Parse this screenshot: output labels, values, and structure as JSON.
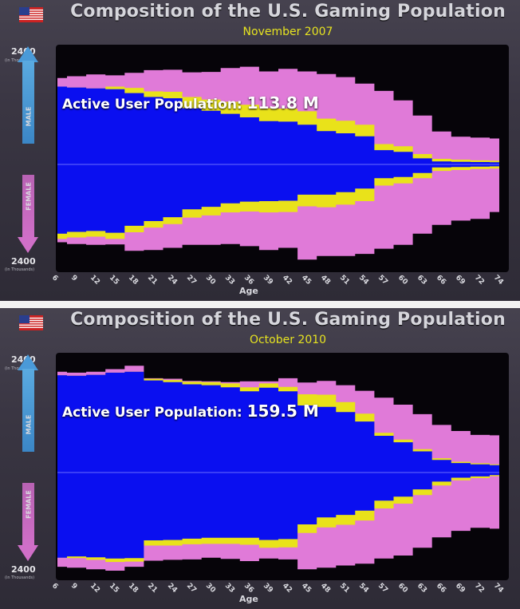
{
  "colors": {
    "background": "#060409",
    "active_male": "#0a0ff0",
    "active_female": "#0a0ff0",
    "inactive": "#e07ad8",
    "band": "#e9e21a",
    "subtitle": "#e6e320"
  },
  "chart_data": [
    {
      "type": "area",
      "title": "Composition of the U.S. Gaming Population",
      "subtitle": "November 2007",
      "xlabel": "Age",
      "y_top_label": "2400",
      "y_bottom_label": "2400",
      "y_unit": "(in Thousands)",
      "male_label": "MALE",
      "female_label": "FEMALE",
      "annotation_label": "Active User Population:",
      "annotation_value": "113.8 M",
      "xlim": [
        6,
        74
      ],
      "ylim": [
        -2400,
        2400
      ],
      "x_ticks": [
        "6",
        "9",
        "12",
        "15",
        "18",
        "21",
        "24",
        "27",
        "30",
        "33",
        "36",
        "39",
        "42",
        "45",
        "48",
        "51",
        "54",
        "57",
        "60",
        "63",
        "66",
        "69",
        "72",
        "74"
      ],
      "x": [
        6,
        9,
        12,
        15,
        18,
        21,
        24,
        27,
        30,
        33,
        36,
        39,
        42,
        45,
        48,
        51,
        54,
        57,
        60,
        63,
        66,
        69,
        72,
        74
      ],
      "male_total": [
        2000,
        2040,
        2080,
        2060,
        2120,
        2180,
        2190,
        2130,
        2140,
        2230,
        2260,
        2150,
        2210,
        2150,
        2090,
        2020,
        1870,
        1700,
        1480,
        1130,
        760,
        640,
        620,
        600
      ],
      "male_active": [
        1800,
        1780,
        1760,
        1740,
        1650,
        1560,
        1530,
        1300,
        1240,
        1170,
        1090,
        1000,
        990,
        920,
        770,
        720,
        650,
        330,
        290,
        140,
        70,
        60,
        55,
        50
      ],
      "male_band": [
        0,
        0,
        0,
        60,
        120,
        130,
        150,
        260,
        260,
        280,
        290,
        300,
        300,
        310,
        290,
        290,
        270,
        140,
        130,
        100,
        60,
        50,
        40,
        35
      ],
      "female_total": [
        1800,
        1840,
        1860,
        1850,
        2000,
        1980,
        1930,
        1860,
        1860,
        1840,
        1890,
        1980,
        1930,
        2200,
        2120,
        2120,
        2070,
        1950,
        1860,
        1600,
        1400,
        1300,
        1260,
        1100
      ],
      "female_active": [
        1600,
        1560,
        1540,
        1580,
        1420,
        1310,
        1220,
        1040,
        980,
        900,
        860,
        850,
        840,
        700,
        700,
        640,
        560,
        320,
        290,
        200,
        70,
        60,
        50,
        45
      ],
      "female_band": [
        120,
        130,
        130,
        140,
        150,
        150,
        160,
        190,
        200,
        210,
        230,
        260,
        260,
        270,
        290,
        290,
        290,
        170,
        150,
        120,
        80,
        70,
        55,
        50
      ]
    },
    {
      "type": "area",
      "title": "Composition of the U.S. Gaming Population",
      "subtitle": "October 2010",
      "xlabel": "Age",
      "y_top_label": "2400",
      "y_bottom_label": "2400",
      "y_unit": "(in Thousands)",
      "male_label": "MALE",
      "female_label": "FEMALE",
      "annotation_label": "Active User Population:",
      "annotation_value": "159.5 M",
      "xlim": [
        6,
        74
      ],
      "ylim": [
        -2400,
        2400
      ],
      "x_ticks": [
        "6",
        "9",
        "12",
        "15",
        "18",
        "21",
        "24",
        "27",
        "30",
        "33",
        "36",
        "39",
        "42",
        "45",
        "48",
        "51",
        "54",
        "57",
        "60",
        "63",
        "66",
        "69",
        "72",
        "74"
      ],
      "x": [
        6,
        9,
        12,
        15,
        18,
        21,
        24,
        27,
        30,
        33,
        36,
        39,
        42,
        45,
        48,
        51,
        54,
        57,
        60,
        63,
        66,
        69,
        72,
        74
      ],
      "male_total": [
        2330,
        2310,
        2330,
        2390,
        2470,
        2180,
        2170,
        2120,
        2110,
        2090,
        2110,
        2110,
        2180,
        2080,
        2120,
        2020,
        1890,
        1730,
        1570,
        1350,
        1100,
        960,
        870,
        860
      ],
      "male_active": [
        2250,
        2240,
        2260,
        2310,
        2330,
        2130,
        2090,
        2040,
        2020,
        1970,
        1880,
        1960,
        1880,
        1550,
        1520,
        1400,
        1180,
        850,
        700,
        490,
        290,
        220,
        190,
        170
      ],
      "male_band": [
        0,
        0,
        0,
        0,
        0,
        40,
        50,
        60,
        70,
        90,
        90,
        100,
        100,
        260,
        280,
        230,
        180,
        70,
        60,
        50,
        40,
        30,
        25,
        20
      ],
      "female_total": [
        2180,
        2200,
        2240,
        2270,
        2180,
        2040,
        2020,
        2010,
        1970,
        2000,
        2050,
        1990,
        2010,
        2240,
        2200,
        2150,
        2110,
        1990,
        1920,
        1740,
        1500,
        1350,
        1280,
        1300
      ],
      "female_active": [
        1970,
        1940,
        1960,
        1990,
        1980,
        1570,
        1560,
        1530,
        1510,
        1510,
        1510,
        1560,
        1540,
        1200,
        1040,
        980,
        880,
        650,
        560,
        390,
        210,
        120,
        90,
        60
      ],
      "female_band": [
        0,
        40,
        60,
        80,
        80,
        120,
        130,
        130,
        140,
        140,
        160,
        180,
        190,
        200,
        230,
        230,
        230,
        180,
        160,
        130,
        90,
        60,
        40,
        25
      ]
    }
  ]
}
